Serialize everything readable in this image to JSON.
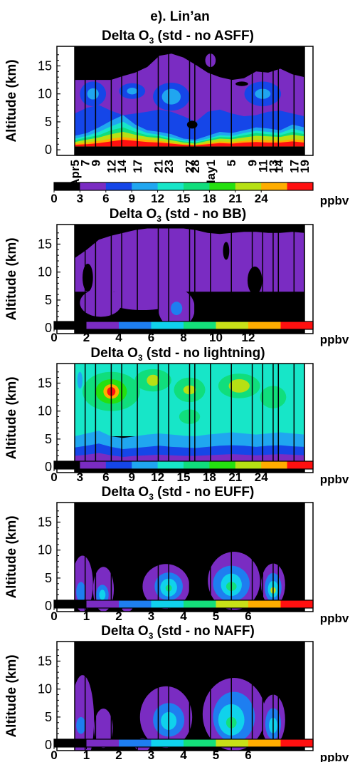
{
  "figure_title": "e). Lin’an",
  "chart_data": [
    {
      "type": "heatmap",
      "title_prefix": "Delta O",
      "title_sub": "3",
      "title_suffix": " (std - no ASFF)",
      "ylabel": "Altitude (km)",
      "yticks": [
        "0",
        "5",
        "10",
        "15"
      ],
      "ylim": [
        -1,
        18.5
      ],
      "xlabels": [
        "Apr5",
        "7",
        "9",
        "12",
        "14",
        "17",
        "21",
        "23",
        "27",
        "28",
        "May1",
        "5",
        "9",
        "11",
        "13",
        "14",
        "17",
        "19"
      ],
      "colorbar_ticks": [
        "0",
        "3",
        "6",
        "9",
        "12",
        "15",
        "18",
        "21",
        "24"
      ],
      "colorbar_unit": "ppbv",
      "levels": [
        0,
        3,
        6,
        9,
        12,
        15,
        18,
        21,
        24,
        27
      ],
      "colors": [
        "#000000",
        "#7a2cc2",
        "#1546e8",
        "#20a6f0",
        "#17e6c8",
        "#10de7c",
        "#25e010",
        "#b6e014",
        "#ffad00",
        "#ff1010"
      ],
      "contour_bands": [
        {
          "level_index": 1,
          "floor_km": 0.6,
          "top_km": [
            12.5,
            12.5,
            12.5,
            12.5,
            13.2,
            13.8,
            14.8,
            16.8,
            17.2,
            16.5,
            15.2,
            13.8,
            13.0,
            12.5,
            12.8,
            14.0,
            13.8,
            14.5,
            13.5,
            13.0
          ]
        },
        {
          "level_index": 2,
          "floor_km": 0.6,
          "top_km": [
            6.5,
            7.5,
            8.0,
            7.0,
            6.2,
            6.5,
            6.8,
            7.2,
            6.8,
            6.0,
            5.0,
            6.8,
            7.2,
            6.5,
            6.0,
            6.2,
            6.8,
            7.0,
            6.5,
            6.0
          ]
        },
        {
          "level_index": 3,
          "floor_km": 0.6,
          "top_km": [
            2.5,
            3.0,
            4.0,
            5.2,
            6.2,
            4.5,
            3.5,
            3.2,
            2.8,
            2.0,
            1.8,
            2.5,
            3.2,
            3.0,
            3.5,
            4.0,
            3.8,
            3.5,
            4.5,
            4.0
          ]
        },
        {
          "level_index": 4,
          "floor_km": 0.6,
          "top_km": [
            2.0,
            2.5,
            3.2,
            4.2,
            5.0,
            3.8,
            3.0,
            2.7,
            2.2,
            1.7,
            1.5,
            2.0,
            2.6,
            2.5,
            3.0,
            3.4,
            3.2,
            3.0,
            3.8,
            3.2
          ]
        },
        {
          "level_index": 5,
          "floor_km": 0.6,
          "top_km": [
            1.7,
            2.2,
            2.6,
            3.5,
            4.0,
            3.2,
            2.6,
            2.4,
            1.9,
            1.5,
            1.3,
            1.8,
            2.3,
            2.2,
            2.6,
            3.0,
            2.8,
            2.6,
            3.2,
            2.8
          ]
        },
        {
          "level_index": 7,
          "floor_km": 0.6,
          "top_km": [
            1.4,
            1.8,
            2.2,
            2.8,
            3.2,
            2.7,
            2.3,
            2.1,
            1.7,
            1.3,
            1.1,
            1.6,
            2.0,
            1.9,
            2.2,
            2.5,
            2.4,
            2.3,
            2.7,
            2.4
          ]
        },
        {
          "level_index": 8,
          "floor_km": 0.6,
          "top_km": [
            1.1,
            1.3,
            1.6,
            2.0,
            2.3,
            2.0,
            1.8,
            1.6,
            1.3,
            1.0,
            0.9,
            1.2,
            1.5,
            1.4,
            1.6,
            1.8,
            1.7,
            1.6,
            1.9,
            1.7
          ]
        },
        {
          "level_index": 9,
          "floor_km": 0.6,
          "top_km": [
            0.9,
            1.0,
            1.2,
            1.5,
            1.8,
            1.6,
            1.4,
            1.3,
            1.1,
            0.9,
            0.8,
            1.0,
            1.2,
            1.1,
            1.3,
            1.4,
            1.3,
            1.3,
            1.5,
            1.3
          ]
        }
      ],
      "blobs": [
        {
          "level_index": 2,
          "day": 3.5,
          "km": 10,
          "rx": 2.5,
          "ry": 2.2
        },
        {
          "level_index": 3,
          "day": 3.5,
          "km": 10,
          "rx": 1.1,
          "ry": 1.0
        },
        {
          "level_index": 2,
          "day": 11,
          "km": 10.5,
          "rx": 2.5,
          "ry": 1.4
        },
        {
          "level_index": 3,
          "day": 11,
          "km": 10.5,
          "rx": 1.0,
          "ry": 0.6
        },
        {
          "level_index": 2,
          "day": 18.5,
          "km": 9.5,
          "rx": 3.5,
          "ry": 2.5
        },
        {
          "level_index": 3,
          "day": 18.5,
          "km": 9.5,
          "rx": 1.8,
          "ry": 1.4
        },
        {
          "level_index": 2,
          "day": 36,
          "km": 10,
          "rx": 3.5,
          "ry": 2.2
        },
        {
          "level_index": 3,
          "day": 36,
          "km": 10,
          "rx": 1.5,
          "ry": 0.9
        },
        {
          "level_index": 0,
          "day": 22.5,
          "km": 4.5,
          "rx": 1.0,
          "ry": 0.7
        },
        {
          "level_index": 0,
          "day": 32,
          "km": 11.8,
          "rx": 1.2,
          "ry": 0.4
        },
        {
          "level_index": 1,
          "day": 26,
          "km": 16,
          "rx": 1.0,
          "ry": 1.2
        }
      ]
    },
    {
      "type": "heatmap",
      "title_prefix": "Delta O",
      "title_sub": "3",
      "title_suffix": " (std - no BB)",
      "ylabel": "Altitude (km)",
      "yticks": [
        "0",
        "5",
        "10",
        "15"
      ],
      "ylim": [
        -1,
        18.5
      ],
      "xlabels": [],
      "colorbar_ticks": [
        "0",
        "2",
        "4",
        "6",
        "8",
        "10",
        "12"
      ],
      "colorbar_unit": "ppbv",
      "levels": [
        0,
        2,
        4,
        6,
        8,
        10,
        12,
        14
      ],
      "colors": [
        "#000000",
        "#7a2cc2",
        "#1e7ef0",
        "#10d2ec",
        "#14e07a",
        "#c8e018",
        "#ffad00",
        "#ff1010"
      ],
      "contour_bands": [
        {
          "level_index": 1,
          "floor_km": 6.5,
          "top_km": [
            12.5,
            14.0,
            15.8,
            16.5,
            17.0,
            17.5,
            17.8,
            17.8,
            17.8,
            17.8,
            17.5,
            17.0,
            16.8,
            17.0,
            17.2,
            17.2,
            17.0,
            17.0,
            17.2,
            17.0
          ]
        }
      ],
      "blobs": [
        {
          "level_index": 1,
          "day": 5,
          "km": 4.5,
          "rx": 4,
          "ry": 2.5
        },
        {
          "level_index": 1,
          "day": 13,
          "km": 5.2,
          "rx": 7,
          "ry": 2.0
        },
        {
          "level_index": 1,
          "day": 19.5,
          "km": 3.5,
          "rx": 3.5,
          "ry": 3.5
        },
        {
          "level_index": 2,
          "day": 19.5,
          "km": 3.5,
          "rx": 1.1,
          "ry": 1.2
        },
        {
          "level_index": 0,
          "day": 29,
          "km": 13.8,
          "rx": 0.6,
          "ry": 1.6
        },
        {
          "level_index": 0,
          "day": 34.5,
          "km": 8.5,
          "rx": 1.4,
          "ry": 2.5
        },
        {
          "level_index": 0,
          "day": 2.5,
          "km": 9.0,
          "rx": 1.0,
          "ry": 2.5
        }
      ]
    },
    {
      "type": "heatmap",
      "title_prefix": "Delta O",
      "title_sub": "3",
      "title_suffix": " (std - no lightning)",
      "ylabel": "Altitude (km)",
      "yticks": [
        "0",
        "5",
        "10",
        "15"
      ],
      "ylim": [
        -1,
        18.5
      ],
      "xlabels": [],
      "colorbar_ticks": [
        "0",
        "3",
        "6",
        "9",
        "12",
        "15",
        "18",
        "21",
        "24"
      ],
      "colorbar_unit": "ppbv",
      "levels": [
        0,
        3,
        6,
        9,
        12,
        15,
        18,
        21,
        24,
        27
      ],
      "colors": [
        "#000000",
        "#7a2cc2",
        "#1546e8",
        "#20a6f0",
        "#17e6c8",
        "#10de7c",
        "#25e010",
        "#b6e014",
        "#ffad00",
        "#ff1010"
      ],
      "contour_bands": [
        {
          "level_index": 4,
          "floor_km": 5.5,
          "top_km": [
            18.5,
            18.5,
            18.5,
            18.5,
            18.5,
            18.5,
            18.5,
            18.5,
            18.5,
            18.5,
            18.5,
            18.5,
            18.5,
            18.5,
            18.5,
            18.5,
            18.5,
            18.5,
            18.5,
            18.5
          ]
        },
        {
          "level_index": 3,
          "floor_km": 0.9,
          "top_km": [
            5.5,
            6.0,
            6.5,
            5.5,
            5.2,
            5.5,
            5.8,
            6.0,
            5.8,
            5.6,
            5.5,
            5.8,
            6.0,
            6.2,
            6.0,
            5.8,
            6.0,
            6.2,
            6.0,
            5.8
          ]
        },
        {
          "level_index": 2,
          "floor_km": 0.9,
          "top_km": [
            3.5,
            3.8,
            4.2,
            3.6,
            3.2,
            3.4,
            3.6,
            3.8,
            3.6,
            3.5,
            3.4,
            3.6,
            3.8,
            3.9,
            3.8,
            3.6,
            3.8,
            3.9,
            3.7,
            3.6
          ]
        },
        {
          "level_index": 1,
          "floor_km": 0.9,
          "top_km": [
            2.0,
            2.2,
            2.5,
            2.1,
            1.8,
            2.0,
            2.1,
            2.2,
            2.1,
            2.0,
            2.0,
            2.1,
            2.2,
            2.3,
            2.2,
            2.1,
            2.2,
            2.3,
            2.2,
            2.1
          ]
        }
      ],
      "blobs": [
        {
          "level_index": 5,
          "day": 7,
          "km": 13.5,
          "rx": 5.5,
          "ry": 3.5
        },
        {
          "level_index": 6,
          "day": 7,
          "km": 13.5,
          "rx": 3.0,
          "ry": 2.2
        },
        {
          "level_index": 8,
          "day": 7,
          "km": 13.5,
          "rx": 1.5,
          "ry": 1.3
        },
        {
          "level_index": 9,
          "day": 7,
          "km": 13.5,
          "rx": 0.8,
          "ry": 0.8
        },
        {
          "level_index": 5,
          "day": 15,
          "km": 15.5,
          "rx": 3.5,
          "ry": 2.0
        },
        {
          "level_index": 7,
          "day": 15,
          "km": 15.5,
          "rx": 1.2,
          "ry": 1.0
        },
        {
          "level_index": 5,
          "day": 22,
          "km": 13.8,
          "rx": 3,
          "ry": 2.2
        },
        {
          "level_index": 7,
          "day": 22,
          "km": 13.8,
          "rx": 1.2,
          "ry": 0.8
        },
        {
          "level_index": 5,
          "day": 22,
          "km": 9.0,
          "rx": 2.0,
          "ry": 1.3
        },
        {
          "level_index": 5,
          "day": 31.5,
          "km": 14.5,
          "rx": 4,
          "ry": 2.2
        },
        {
          "level_index": 7,
          "day": 31.5,
          "km": 14.5,
          "rx": 2.0,
          "ry": 1.2
        },
        {
          "level_index": 5,
          "day": 38,
          "km": 12.5,
          "rx": 2.5,
          "ry": 2.0
        },
        {
          "level_index": 3,
          "day": 1,
          "km": 15.5,
          "rx": 0.5,
          "ry": 1.5
        },
        {
          "level_index": 0,
          "day": 7,
          "km": 0,
          "rx": 1.0,
          "ry": 0.6
        }
      ]
    },
    {
      "type": "heatmap",
      "title_prefix": "Delta O",
      "title_sub": "3",
      "title_suffix": " (std - no EUFF)",
      "ylabel": "Altitude (km)",
      "yticks": [
        "0",
        "5",
        "10",
        "15"
      ],
      "ylim": [
        -1,
        18.5
      ],
      "xlabels": [],
      "colorbar_ticks": [
        "0",
        "1",
        "2",
        "3",
        "4",
        "5",
        "6"
      ],
      "colorbar_unit": "ppbv",
      "levels": [
        0,
        1,
        2,
        3,
        4,
        5,
        6,
        7
      ],
      "colors": [
        "#000000",
        "#7a2cc2",
        "#1e7ef0",
        "#10d2ec",
        "#14e07a",
        "#c8e018",
        "#ffad00",
        "#ff1010"
      ],
      "contour_bands": [],
      "blobs": [
        {
          "level_index": 1,
          "day": 1.5,
          "km": 4,
          "rx": 2.0,
          "ry": 5
        },
        {
          "level_index": 2,
          "day": 1.2,
          "km": 2.5,
          "rx": 0.9,
          "ry": 1.8
        },
        {
          "level_index": 1,
          "day": 5.5,
          "km": 3,
          "rx": 2.0,
          "ry": 4
        },
        {
          "level_index": 2,
          "day": 5.3,
          "km": 2,
          "rx": 1.2,
          "ry": 1.8
        },
        {
          "level_index": 3,
          "day": 5.3,
          "km": 2,
          "rx": 0.6,
          "ry": 0.9
        },
        {
          "level_index": 1,
          "day": 10,
          "km": 0,
          "rx": 1.2,
          "ry": 1.0
        },
        {
          "level_index": 1,
          "day": 17.5,
          "km": 3.5,
          "rx": 4.5,
          "ry": 4
        },
        {
          "level_index": 2,
          "day": 18,
          "km": 3.5,
          "rx": 2.7,
          "ry": 2.5
        },
        {
          "level_index": 3,
          "day": 18,
          "km": 3.3,
          "rx": 1.6,
          "ry": 1.6
        },
        {
          "level_index": 4,
          "day": 18,
          "km": 3.2,
          "rx": 0.6,
          "ry": 0.6
        },
        {
          "level_index": 1,
          "day": 30.5,
          "km": 4.5,
          "rx": 5,
          "ry": 5.2
        },
        {
          "level_index": 2,
          "day": 30,
          "km": 4.0,
          "rx": 3.5,
          "ry": 3.2
        },
        {
          "level_index": 3,
          "day": 30,
          "km": 3.8,
          "rx": 2.0,
          "ry": 2.0
        },
        {
          "level_index": 4,
          "day": 30,
          "km": 3.5,
          "rx": 1.0,
          "ry": 0.8
        },
        {
          "level_index": 1,
          "day": 38,
          "km": 3.8,
          "rx": 2.3,
          "ry": 3.8
        },
        {
          "level_index": 2,
          "day": 38,
          "km": 3.3,
          "rx": 1.6,
          "ry": 2.6
        },
        {
          "level_index": 3,
          "day": 38,
          "km": 3.0,
          "rx": 1.0,
          "ry": 1.5
        },
        {
          "level_index": 5,
          "day": 38,
          "km": 2.8,
          "rx": 0.5,
          "ry": 0.6
        }
      ]
    },
    {
      "type": "heatmap",
      "title_prefix": "Delta O",
      "title_sub": "3",
      "title_suffix": " (std - no NAFF)",
      "ylabel": "Altitude (km)",
      "yticks": [
        "0",
        "5",
        "10",
        "15"
      ],
      "ylim": [
        -1,
        18.5
      ],
      "xlabels": [],
      "colorbar_ticks": [
        "0",
        "1",
        "2",
        "3",
        "4",
        "5",
        "6"
      ],
      "colorbar_unit": "ppbv",
      "levels": [
        0,
        1,
        2,
        3,
        4,
        5,
        6,
        7
      ],
      "colors": [
        "#000000",
        "#7a2cc2",
        "#1e7ef0",
        "#10d2ec",
        "#14e07a",
        "#c8e018",
        "#ffad00",
        "#ff1010"
      ],
      "contour_bands": [],
      "blobs": [
        {
          "level_index": 1,
          "day": 1.5,
          "km": 4.5,
          "rx": 2.2,
          "ry": 8
        },
        {
          "level_index": 2,
          "day": 1.2,
          "km": 3.5,
          "rx": 0.9,
          "ry": 1.5
        },
        {
          "level_index": 1,
          "day": 5.5,
          "km": 3,
          "rx": 1.8,
          "ry": 3.5
        },
        {
          "level_index": 1,
          "day": 17.5,
          "km": 5,
          "rx": 5,
          "ry": 5.5
        },
        {
          "level_index": 2,
          "day": 18,
          "km": 4.5,
          "rx": 3,
          "ry": 3
        },
        {
          "level_index": 3,
          "day": 18,
          "km": 4.3,
          "rx": 1.5,
          "ry": 1.6
        },
        {
          "level_index": 1,
          "day": 30.5,
          "km": 5.5,
          "rx": 6,
          "ry": 6.5
        },
        {
          "level_index": 2,
          "day": 30.5,
          "km": 5.0,
          "rx": 4,
          "ry": 4.5
        },
        {
          "level_index": 3,
          "day": 30,
          "km": 4.5,
          "rx": 2.5,
          "ry": 2.8
        },
        {
          "level_index": 4,
          "day": 30,
          "km": 4.0,
          "rx": 1.0,
          "ry": 1.0
        },
        {
          "level_index": 1,
          "day": 38,
          "km": 4.5,
          "rx": 2.3,
          "ry": 4.5
        },
        {
          "level_index": 2,
          "day": 38,
          "km": 3.8,
          "rx": 1.5,
          "ry": 2.8
        },
        {
          "level_index": 3,
          "day": 38,
          "km": 3.5,
          "rx": 0.8,
          "ry": 1.4
        },
        {
          "level_index": 1,
          "day": 13,
          "km": 0,
          "rx": 1.5,
          "ry": 1.2
        }
      ]
    }
  ]
}
